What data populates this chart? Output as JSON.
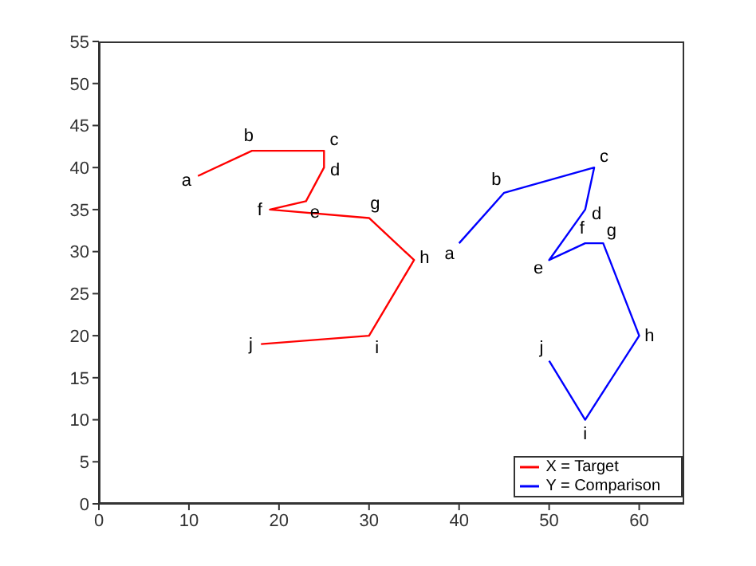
{
  "chart_data": {
    "type": "line",
    "xlim": [
      0,
      65
    ],
    "xticks": [
      0,
      10,
      20,
      30,
      40,
      50,
      60
    ],
    "ylim": [
      0,
      55
    ],
    "yticks": [
      0,
      5,
      10,
      15,
      20,
      25,
      30,
      35,
      40,
      45,
      50,
      55
    ],
    "grid": false,
    "legend": "bottom right",
    "marker": "none",
    "line_style": "solid",
    "series": [
      {
        "name": "X = Target",
        "color": "#ff0000",
        "x": [
          11,
          17,
          25,
          25,
          23,
          19,
          30,
          35,
          30,
          18
        ],
        "values": [
          39,
          42,
          42,
          40,
          36,
          35,
          34,
          29,
          20,
          19
        ]
      },
      {
        "name": "Y = Comparison",
        "color": "#0000ff",
        "x": [
          40,
          45,
          55,
          54,
          50,
          54,
          56,
          60,
          54,
          50
        ],
        "values": [
          31,
          37,
          40,
          35,
          29,
          31,
          31,
          20,
          10,
          17
        ]
      }
    ],
    "annotations": [
      {
        "text": "a",
        "x": 11,
        "y": 39
      },
      {
        "text": "b",
        "x": 17,
        "y": 42
      },
      {
        "text": "c",
        "x": 25,
        "y": 42
      },
      {
        "text": "d",
        "x": 25,
        "y": 40
      },
      {
        "text": "e",
        "x": 23,
        "y": 36
      },
      {
        "text": "f",
        "x": 19,
        "y": 35
      },
      {
        "text": "g",
        "x": 30,
        "y": 34
      },
      {
        "text": "h",
        "x": 35,
        "y": 29
      },
      {
        "text": "i",
        "x": 30,
        "y": 20
      },
      {
        "text": "j",
        "x": 18,
        "y": 19
      },
      {
        "text": "a",
        "x": 40,
        "y": 31
      },
      {
        "text": "b",
        "x": 45,
        "y": 37
      },
      {
        "text": "c",
        "x": 55,
        "y": 40
      },
      {
        "text": "d",
        "x": 54,
        "y": 35
      },
      {
        "text": "e",
        "x": 50,
        "y": 29
      },
      {
        "text": "f",
        "x": 54,
        "y": 31
      },
      {
        "text": "g",
        "x": 56,
        "y": 31
      },
      {
        "text": "h",
        "x": 60,
        "y": 20
      },
      {
        "text": "i",
        "x": 54,
        "y": 10
      },
      {
        "text": "j",
        "x": 50,
        "y": 17
      }
    ]
  }
}
